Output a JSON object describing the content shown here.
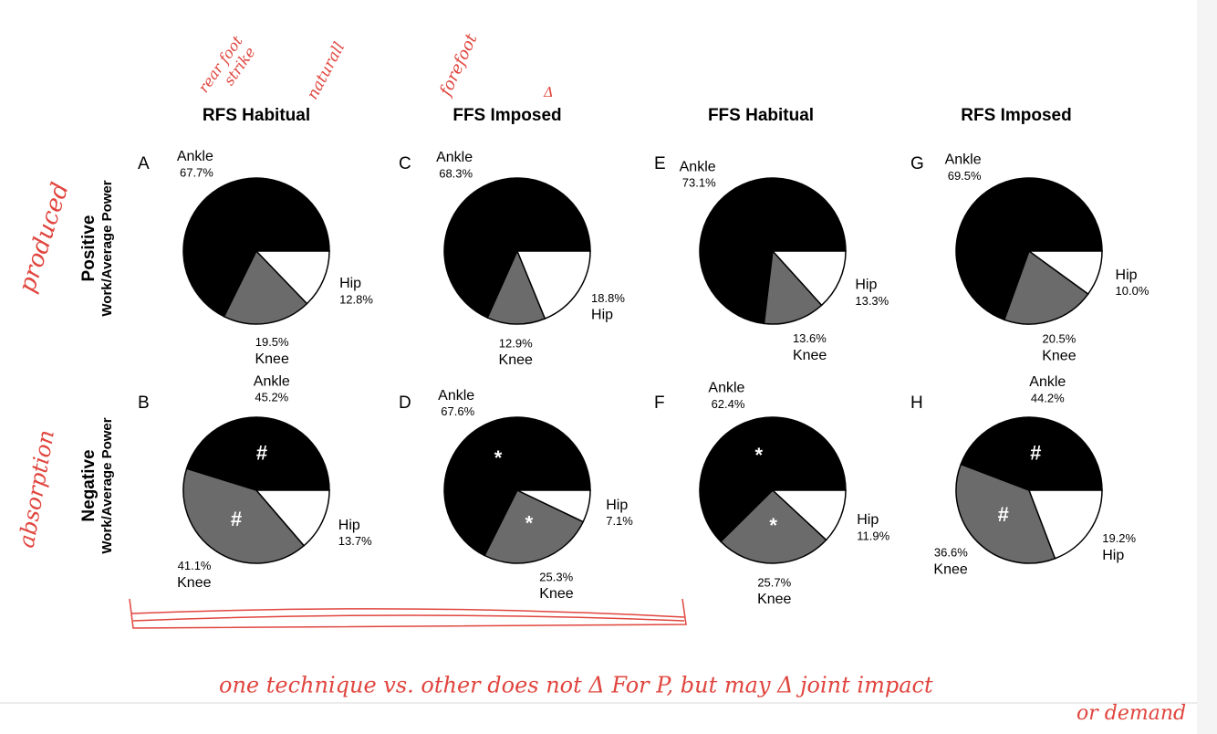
{
  "figure": {
    "columns": [
      "RFS Habitual",
      "FFS Imposed",
      "FFS Habitual",
      "RFS Imposed"
    ],
    "rows": [
      {
        "title": "Positive",
        "subtitle": "Work/Average Power"
      },
      {
        "title": "Negative",
        "subtitle": "Work/Average Power"
      }
    ],
    "handwriting": {
      "rear_foot": [
        "rear foot",
        "strike"
      ],
      "natural": "naturall",
      "forefoot": "forefoot",
      "delta": "Δ",
      "produced": "produced",
      "absorption": "absorption",
      "note": [
        "one technique vs. other does not  Δ  For P, but may Δ joint impact",
        "or demand"
      ]
    }
  },
  "chart_data": [
    {
      "type": "pie",
      "panel": "A",
      "categories": [
        "Ankle",
        "Knee",
        "Hip"
      ],
      "values": [
        67.7,
        19.5,
        12.8
      ],
      "value_labels": [
        "67.7%",
        "19.5%",
        "12.8%"
      ],
      "colors": [
        "#000000",
        "#6b6b6b",
        "#ffffff"
      ],
      "markers": [
        null,
        null,
        null
      ]
    },
    {
      "type": "pie",
      "panel": "B",
      "categories": [
        "Ankle",
        "Knee",
        "Hip"
      ],
      "values": [
        45.2,
        41.1,
        13.7
      ],
      "value_labels": [
        "45.2%",
        "41.1%",
        "13.7%"
      ],
      "colors": [
        "#000000",
        "#6b6b6b",
        "#ffffff"
      ],
      "markers": [
        "#",
        "#",
        null
      ]
    },
    {
      "type": "pie",
      "panel": "C",
      "categories": [
        "Ankle",
        "Knee",
        "Hip"
      ],
      "values": [
        68.3,
        12.9,
        18.8
      ],
      "value_labels": [
        "68.3%",
        "12.9%",
        "18.8%"
      ],
      "colors": [
        "#000000",
        "#6b6b6b",
        "#ffffff"
      ],
      "markers": [
        null,
        null,
        null
      ]
    },
    {
      "type": "pie",
      "panel": "D",
      "categories": [
        "Ankle",
        "Knee",
        "Hip"
      ],
      "values": [
        67.6,
        25.3,
        7.1
      ],
      "value_labels": [
        "67.6%",
        "25.3%",
        "7.1%"
      ],
      "colors": [
        "#000000",
        "#6b6b6b",
        "#ffffff"
      ],
      "markers": [
        "*",
        "*",
        null
      ]
    },
    {
      "type": "pie",
      "panel": "E",
      "categories": [
        "Ankle",
        "Knee",
        "Hip"
      ],
      "values": [
        73.1,
        13.6,
        13.3
      ],
      "value_labels": [
        "73.1%",
        "13.6%",
        "13.3%"
      ],
      "colors": [
        "#000000",
        "#6b6b6b",
        "#ffffff"
      ],
      "markers": [
        null,
        null,
        null
      ]
    },
    {
      "type": "pie",
      "panel": "F",
      "categories": [
        "Ankle",
        "Knee",
        "Hip"
      ],
      "values": [
        62.4,
        25.7,
        11.9
      ],
      "value_labels": [
        "62.4%",
        "25.7%",
        "11.9%"
      ],
      "colors": [
        "#000000",
        "#6b6b6b",
        "#ffffff"
      ],
      "markers": [
        "*",
        "*",
        null
      ]
    },
    {
      "type": "pie",
      "panel": "G",
      "categories": [
        "Ankle",
        "Knee",
        "Hip"
      ],
      "values": [
        69.5,
        20.5,
        10.0
      ],
      "value_labels": [
        "69.5%",
        "20.5%",
        "10.0%"
      ],
      "colors": [
        "#000000",
        "#6b6b6b",
        "#ffffff"
      ],
      "markers": [
        null,
        null,
        null
      ]
    },
    {
      "type": "pie",
      "panel": "H",
      "categories": [
        "Ankle",
        "Knee",
        "Hip"
      ],
      "values": [
        44.2,
        36.6,
        19.2
      ],
      "value_labels": [
        "44.2%",
        "36.6%",
        "19.2%"
      ],
      "colors": [
        "#000000",
        "#6b6b6b",
        "#ffffff"
      ],
      "markers": [
        "#",
        "#",
        null
      ]
    }
  ]
}
